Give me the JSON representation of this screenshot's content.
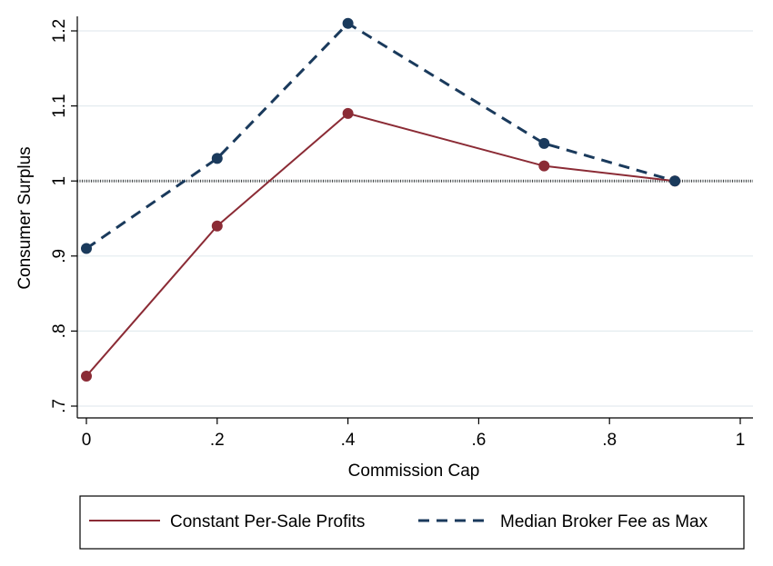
{
  "chart_data": {
    "type": "line",
    "title": "",
    "xlabel": "Commission Cap",
    "ylabel": "Consumer Surplus",
    "xlim": [
      0,
      1
    ],
    "ylim": [
      0.7,
      1.2
    ],
    "x_ticks": [
      0,
      0.2,
      0.4,
      0.6,
      0.8,
      1
    ],
    "x_tick_labels": [
      "0",
      ".2",
      ".4",
      ".6",
      ".8",
      "1"
    ],
    "y_ticks": [
      0.7,
      0.8,
      0.9,
      1.0,
      1.1,
      1.2
    ],
    "y_tick_labels": [
      ".7",
      ".8",
      ".9",
      "1",
      "1.1",
      "1.2"
    ],
    "grid": "horizontal",
    "reference_line": {
      "y": 1.0,
      "style": "dotted"
    },
    "legend_position": "bottom",
    "series": [
      {
        "name": "Constant Per-Sale Profits",
        "color": "#8b2b35",
        "style": "solid",
        "x": [
          0,
          0.2,
          0.4,
          0.7,
          0.9
        ],
        "y": [
          0.74,
          0.94,
          1.09,
          1.02,
          1.0
        ]
      },
      {
        "name": "Median Broker Fee as Max",
        "color": "#1a3a5c",
        "style": "dashed",
        "x": [
          0,
          0.2,
          0.4,
          0.7,
          0.9
        ],
        "y": [
          0.91,
          1.03,
          1.21,
          1.05,
          1.0
        ]
      }
    ]
  }
}
